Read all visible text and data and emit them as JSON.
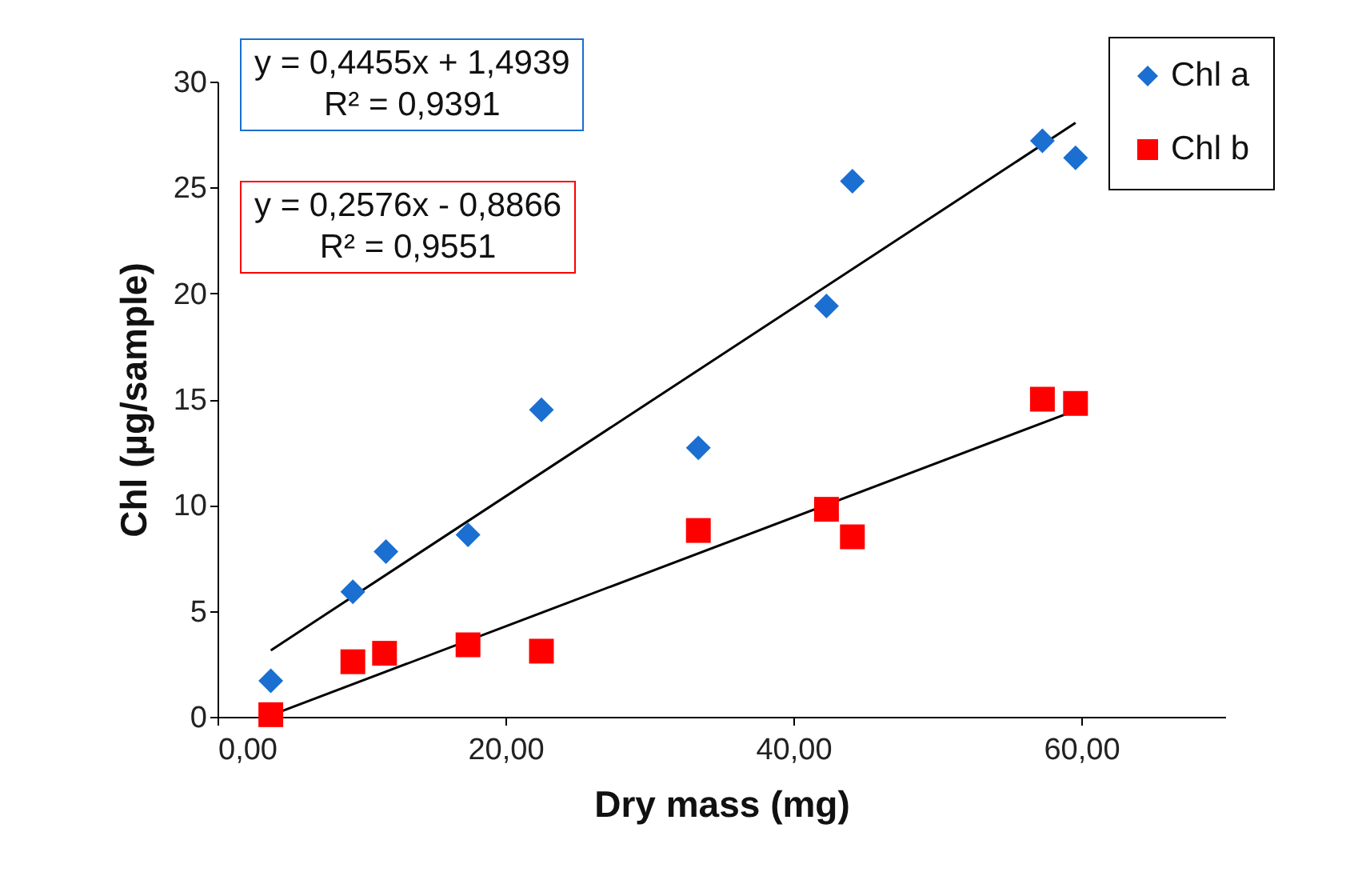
{
  "chart_data": {
    "type": "scatter",
    "xlabel": "Dry mass (mg)",
    "ylabel": "Chl (µg/sample)",
    "xlim": [
      0,
      70
    ],
    "xticks": [
      {
        "value": 0,
        "label": "0,00"
      },
      {
        "value": 20,
        "label": "20,00"
      },
      {
        "value": 40,
        "label": "40,00"
      },
      {
        "value": 60,
        "label": "60,00"
      }
    ],
    "ylim": [
      0,
      30
    ],
    "yticks": [
      0,
      5,
      10,
      15,
      20,
      25,
      30
    ],
    "grid": false,
    "legend": "top right",
    "annotations": [
      "y = 0,4455x + 1,4939\nR² = 0,9391",
      "y = 0,2576x - 0,8866\nR² = 0,9551"
    ],
    "series": [
      {
        "name": "Chl a",
        "color": "#1a6fd0",
        "marker": "diamond",
        "x": [
          3.7,
          9.4,
          11.7,
          17.4,
          22.5,
          33.4,
          42.3,
          44.1,
          57.3,
          59.6
        ],
        "values": [
          1.7,
          5.9,
          7.8,
          8.6,
          14.5,
          12.7,
          19.4,
          25.3,
          27.2,
          26.4
        ]
      },
      {
        "name": "Chl b",
        "color": "#ff0000",
        "marker": "square",
        "x": [
          3.7,
          9.4,
          11.6,
          17.4,
          22.5,
          33.4,
          42.3,
          44.1,
          57.3,
          59.6
        ],
        "values": [
          0.1,
          2.6,
          3.0,
          3.4,
          3.1,
          8.8,
          9.8,
          8.5,
          15.0,
          14.8
        ]
      },
      {
        "type": "line",
        "color": "#000000",
        "x": [
          3.7,
          59.6
        ],
        "values": [
          3.14,
          28.05
        ]
      },
      {
        "type": "line",
        "color": "#000000",
        "x": [
          3.7,
          59.6
        ],
        "values": [
          0.07,
          14.47
        ]
      }
    ]
  }
}
